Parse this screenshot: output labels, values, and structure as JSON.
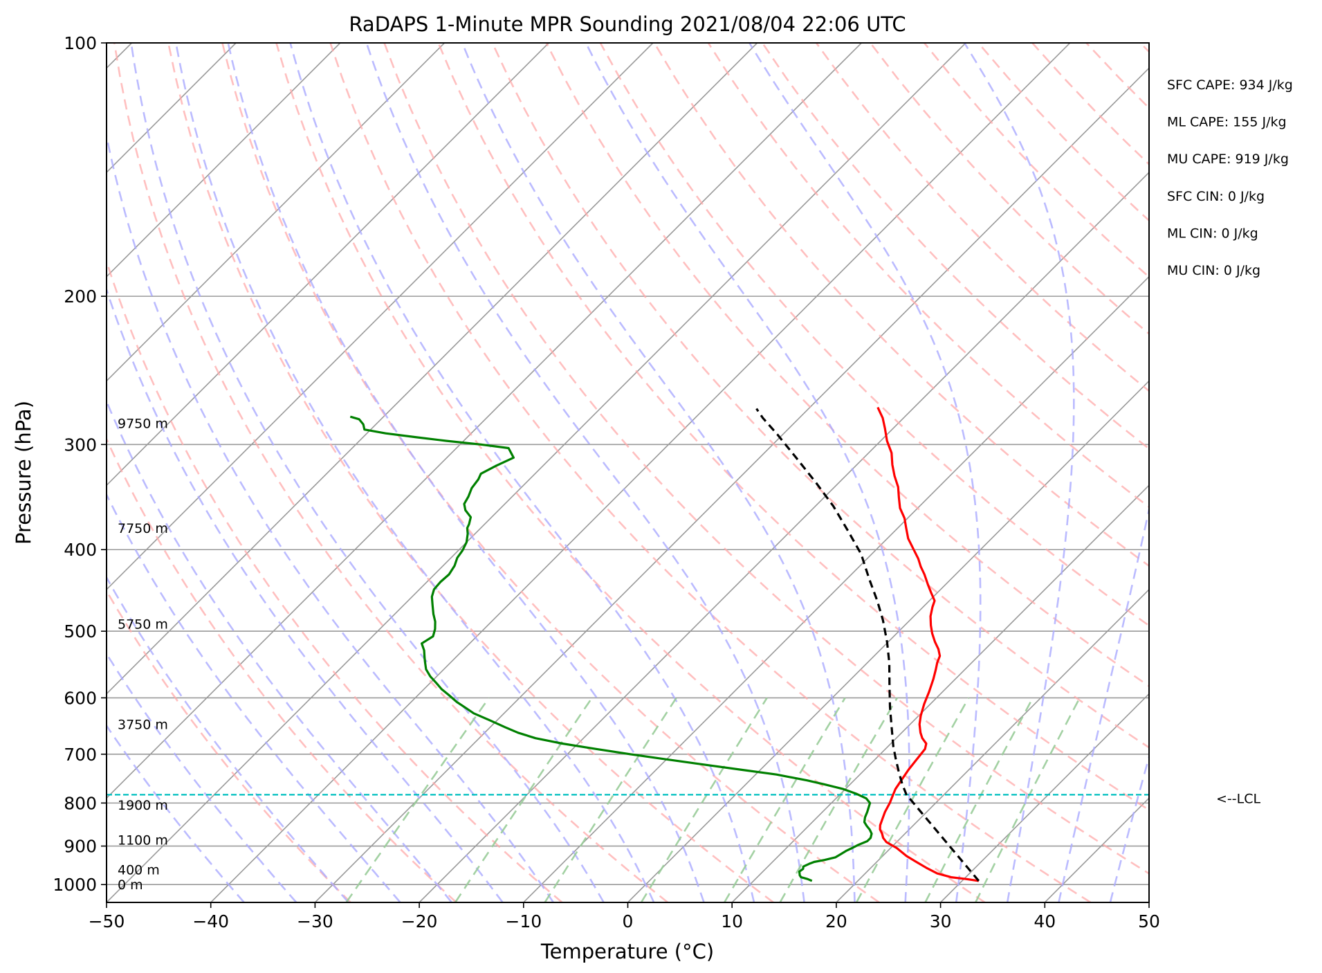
{
  "chart_data": {
    "type": "line",
    "subtype": "skew-T log-p sounding",
    "title": "RaDAPS 1-Minute MPR Sounding 2021/08/04 22:06 UTC",
    "xlabel": "Temperature (°C)",
    "ylabel": "Pressure (hPa)",
    "xlim": [
      -50,
      50
    ],
    "ylim": [
      1050,
      100
    ],
    "y_scale": "log",
    "skew_deg": 45,
    "grid": true,
    "x_ticks": [
      -50,
      -40,
      -30,
      -20,
      -10,
      0,
      10,
      20,
      30,
      40,
      50
    ],
    "y_ticks": [
      100,
      200,
      300,
      400,
      500,
      600,
      700,
      800,
      900,
      1000
    ],
    "colors": {
      "temperature": "#ff0000",
      "dewpoint": "#008000",
      "parcel": "#000000",
      "lcl": "#00bfbf",
      "dry_adiabats": "#ffaaaa",
      "moist_adiabats": "#aaaaff",
      "mixing_ratio": "#99cc99",
      "isotherms": "#999999"
    },
    "series": [
      {
        "name": "Temperature",
        "points": [
          [
            31.6,
            990
          ],
          [
            30.2,
            985
          ],
          [
            28.6,
            980
          ],
          [
            26.9,
            970
          ],
          [
            25.3,
            955
          ],
          [
            23.8,
            940
          ],
          [
            22.3,
            925
          ],
          [
            20.6,
            905
          ],
          [
            19.0,
            890
          ],
          [
            18.3,
            880
          ],
          [
            17.8,
            870
          ],
          [
            17.2,
            860
          ],
          [
            16.8,
            850
          ],
          [
            16.4,
            835
          ],
          [
            16.0,
            820
          ],
          [
            15.6,
            800
          ],
          [
            15.2,
            785
          ],
          [
            14.8,
            770
          ],
          [
            14.5,
            750
          ],
          [
            14.2,
            730
          ],
          [
            14.0,
            710
          ],
          [
            13.8,
            690
          ],
          [
            13.4,
            680
          ],
          [
            12.5,
            670
          ],
          [
            11.8,
            660
          ],
          [
            10.9,
            645
          ],
          [
            10.2,
            630
          ],
          [
            9.4,
            610
          ],
          [
            8.7,
            590
          ],
          [
            7.9,
            570
          ],
          [
            7.2,
            555
          ],
          [
            6.7,
            545
          ],
          [
            6.3,
            535
          ],
          [
            5.5,
            525
          ],
          [
            4.5,
            515
          ],
          [
            3.4,
            503
          ],
          [
            2.5,
            492
          ],
          [
            1.6,
            480
          ],
          [
            0.9,
            468
          ],
          [
            0.5,
            460
          ],
          [
            -0.6,
            450
          ],
          [
            -1.7,
            440
          ],
          [
            -3.0,
            428
          ],
          [
            -4.1,
            419
          ],
          [
            -5.1,
            410
          ],
          [
            -6.4,
            400
          ],
          [
            -8.0,
            388
          ],
          [
            -9.2,
            377
          ],
          [
            -10.3,
            367
          ],
          [
            -11.7,
            357
          ],
          [
            -12.8,
            347
          ],
          [
            -13.9,
            337
          ],
          [
            -15.3,
            327
          ],
          [
            -16.6,
            317
          ],
          [
            -17.8,
            307
          ],
          [
            -19.4,
            297
          ],
          [
            -20.8,
            287
          ],
          [
            -22.0,
            279
          ],
          [
            -23.5,
            271
          ]
        ]
      },
      {
        "name": "Dewpoint",
        "points": [
          [
            15.6,
            990
          ],
          [
            15.0,
            985
          ],
          [
            14.2,
            980
          ],
          [
            13.9,
            975
          ],
          [
            13.7,
            970
          ],
          [
            13.5,
            965
          ],
          [
            13.6,
            958
          ],
          [
            13.4,
            952
          ],
          [
            13.7,
            945
          ],
          [
            14.0,
            940
          ],
          [
            14.8,
            935
          ],
          [
            15.6,
            928
          ],
          [
            15.8,
            920
          ],
          [
            16.0,
            912
          ],
          [
            16.3,
            905
          ],
          [
            16.6,
            897
          ],
          [
            17.1,
            888
          ],
          [
            17.1,
            880
          ],
          [
            16.8,
            870
          ],
          [
            16.2,
            860
          ],
          [
            15.6,
            852
          ],
          [
            15.0,
            843
          ],
          [
            14.6,
            832
          ],
          [
            14.3,
            820
          ],
          [
            14.0,
            810
          ],
          [
            13.7,
            800
          ],
          [
            12.9,
            790
          ],
          [
            11.5,
            780
          ],
          [
            9.8,
            770
          ],
          [
            7.5,
            760
          ],
          [
            5.5,
            752
          ],
          [
            2.0,
            740
          ],
          [
            -2.0,
            730
          ],
          [
            -6.0,
            720
          ],
          [
            -10.0,
            710
          ],
          [
            -14.0,
            700
          ],
          [
            -17.8,
            690
          ],
          [
            -21.5,
            680
          ],
          [
            -24.6,
            670
          ],
          [
            -26.8,
            660
          ],
          [
            -28.6,
            650
          ],
          [
            -30.7,
            638
          ],
          [
            -32.9,
            626
          ],
          [
            -34.3,
            616
          ],
          [
            -35.6,
            607
          ],
          [
            -37.1,
            595
          ],
          [
            -38.3,
            586
          ],
          [
            -39.3,
            577
          ],
          [
            -40.6,
            566
          ],
          [
            -41.7,
            555
          ],
          [
            -42.5,
            544
          ],
          [
            -43.0,
            537
          ],
          [
            -43.7,
            527
          ],
          [
            -44.6,
            517
          ],
          [
            -44.2,
            507
          ],
          [
            -44.7,
            497
          ],
          [
            -45.4,
            487
          ],
          [
            -46.3,
            477
          ],
          [
            -47.2,
            466
          ],
          [
            -48.1,
            455
          ],
          [
            -48.6,
            446
          ],
          [
            -48.7,
            437
          ],
          [
            -48.6,
            428
          ],
          [
            -48.9,
            418
          ],
          [
            -49.4,
            409
          ],
          [
            -49.6,
            401
          ],
          [
            -50.0,
            392
          ],
          [
            -50.7,
            383
          ],
          [
            -51.3,
            377
          ],
          [
            -51.5,
            373
          ],
          [
            -52.0,
            366
          ],
          [
            -53.2,
            359
          ],
          [
            -53.9,
            353
          ],
          [
            -54.2,
            346
          ],
          [
            -54.7,
            338
          ],
          [
            -54.9,
            330
          ],
          [
            -55.2,
            325
          ],
          [
            -54.5,
            318
          ],
          [
            -53.6,
            311
          ],
          [
            -55.0,
            303
          ],
          [
            -58.0,
            300
          ],
          [
            -61.7,
            297
          ],
          [
            -65.0,
            294
          ],
          [
            -68.2,
            291
          ],
          [
            -70.6,
            288
          ],
          [
            -71.2,
            284
          ],
          [
            -72.1,
            280
          ],
          [
            -73.2,
            278
          ]
        ]
      },
      {
        "name": "Parcel",
        "points": [
          [
            31.6,
            990
          ],
          [
            16.4,
            782
          ],
          [
            15.0,
            760
          ],
          [
            13.5,
            735
          ],
          [
            12.0,
            710
          ],
          [
            10.5,
            685
          ],
          [
            8.5,
            650
          ],
          [
            6.4,
            615
          ],
          [
            4.3,
            580
          ],
          [
            2.1,
            545
          ],
          [
            -0.1,
            515
          ],
          [
            -2.6,
            485
          ],
          [
            -5.0,
            460
          ],
          [
            -7.9,
            433
          ],
          [
            -11.0,
            405
          ],
          [
            -14.5,
            380
          ],
          [
            -18.3,
            355
          ],
          [
            -22.2,
            333
          ],
          [
            -26.5,
            311
          ],
          [
            -30.5,
            292
          ],
          [
            -33.5,
            279
          ],
          [
            -35.0,
            272
          ]
        ]
      }
    ],
    "lcl": {
      "pressure": 782,
      "label": "<--LCL"
    },
    "height_labels": [
      {
        "text": "9750 m",
        "pressure": 283
      },
      {
        "text": "7750 m",
        "pressure": 377
      },
      {
        "text": "5750 m",
        "pressure": 490
      },
      {
        "text": "3750 m",
        "pressure": 645
      },
      {
        "text": "1900 m",
        "pressure": 804
      },
      {
        "text": "1100 m",
        "pressure": 885
      },
      {
        "text": "400 m",
        "pressure": 960
      },
      {
        "text": "0 m",
        "pressure": 1000
      }
    ],
    "annotations": [
      "SFC CAPE: 934 J/kg",
      "ML CAPE: 155 J/kg",
      "MU CAPE: 919 J/kg",
      "SFC CIN: 0 J/kg",
      "ML CIN: 0 J/kg",
      "MU CIN: 0 J/kg"
    ]
  }
}
